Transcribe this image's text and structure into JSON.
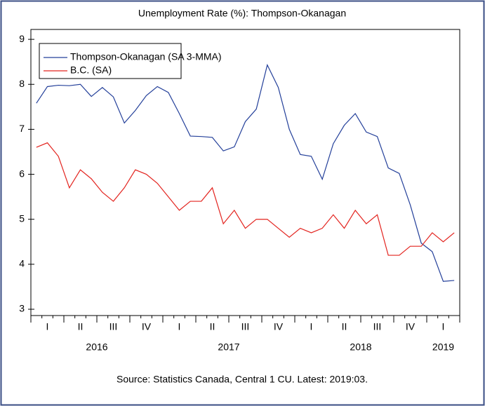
{
  "chart_data": {
    "type": "line",
    "title": "Unemployment Rate (%): Thompson-Okanagan",
    "source": "Source: Statistics Canada, Central 1 CU. Latest: 2019:03.",
    "quarter_labels": [
      "I",
      "II",
      "III",
      "IV",
      "I",
      "II",
      "III",
      "IV",
      "I",
      "II",
      "III",
      "IV",
      "I"
    ],
    "years": [
      "2016",
      "2017",
      "2018",
      "2019"
    ],
    "series": [
      {
        "name": "Thompson-Okanagan (SA 3-MMA)",
        "color": "#24409a",
        "values": [
          7.58,
          7.95,
          7.98,
          7.97,
          8.0,
          7.73,
          7.93,
          7.72,
          7.14,
          7.42,
          7.75,
          7.95,
          7.82,
          7.35,
          6.85,
          6.84,
          6.82,
          6.52,
          6.61,
          7.17,
          7.45,
          8.43,
          7.93,
          7.0,
          6.44,
          6.4,
          5.89,
          6.68,
          7.09,
          7.35,
          6.94,
          6.84,
          6.14,
          6.02,
          5.32,
          4.47,
          4.28,
          3.62,
          3.64
        ]
      },
      {
        "name": "B.C. (SA)",
        "color": "#e3241f",
        "values": [
          6.6,
          6.7,
          6.4,
          5.7,
          6.1,
          5.9,
          5.6,
          5.4,
          5.7,
          6.1,
          6.0,
          5.8,
          5.5,
          5.2,
          5.4,
          5.4,
          5.7,
          4.9,
          5.2,
          4.8,
          5.0,
          5.0,
          4.8,
          4.6,
          4.8,
          4.7,
          4.8,
          5.1,
          4.8,
          5.2,
          4.9,
          5.1,
          4.2,
          4.2,
          4.4,
          4.4,
          4.7,
          4.5,
          4.7
        ]
      }
    ],
    "ylim": [
      2.86,
      9.22
    ],
    "yticks": [
      3,
      4,
      5,
      6,
      7,
      8,
      9
    ],
    "legend": "upper left"
  }
}
